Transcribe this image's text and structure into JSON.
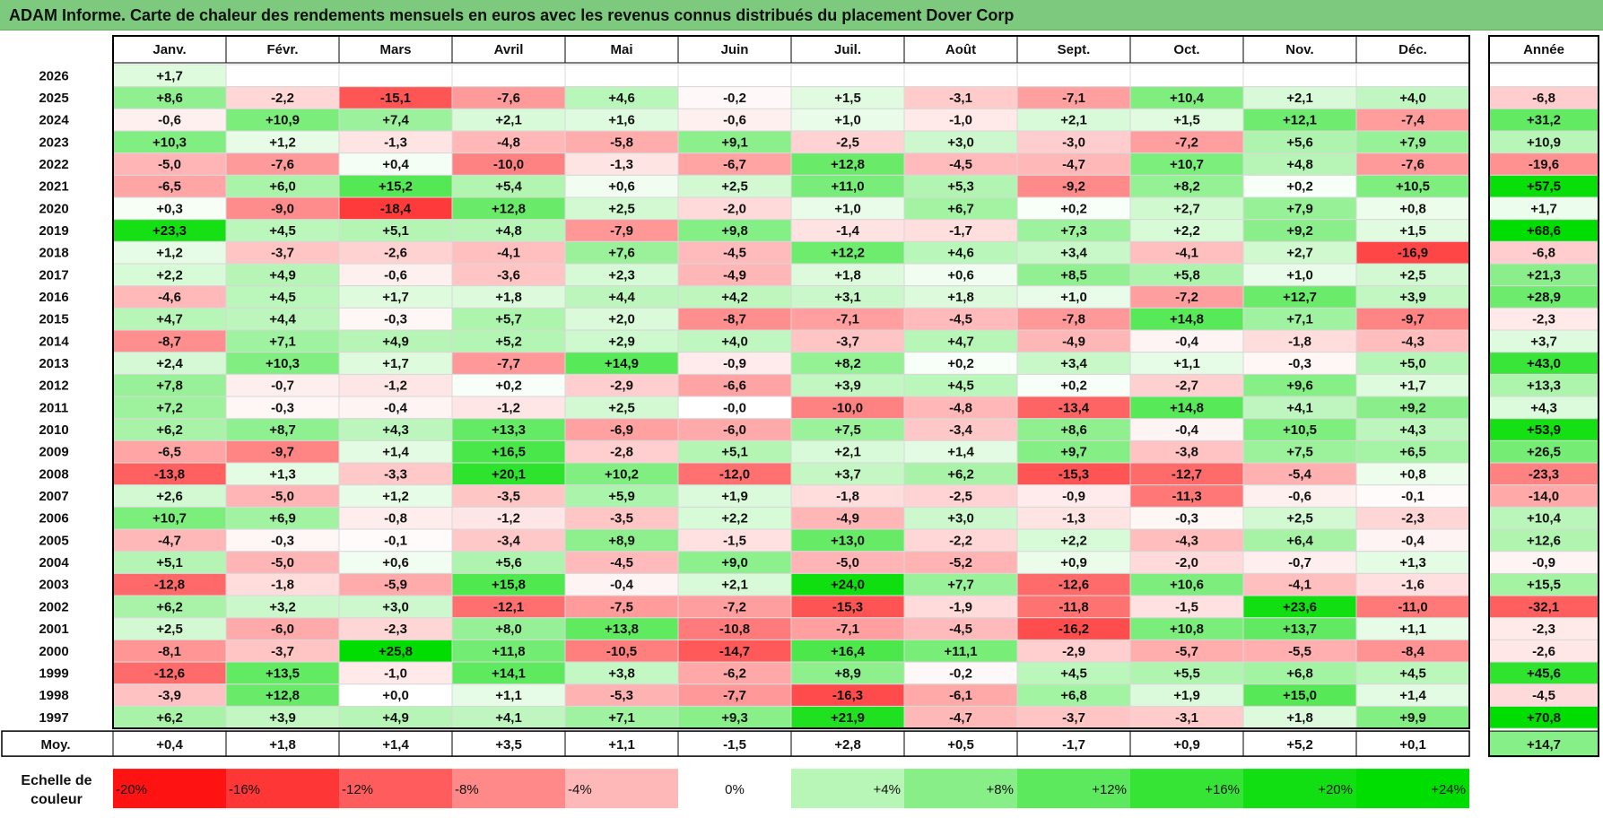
{
  "title": "ADAM Informe. Carte de chaleur des rendements mensuels en euros avec les revenus connus distribués du placement Dover Corp",
  "chart_data": {
    "type": "heatmap",
    "months": [
      "Janv.",
      "Févr.",
      "Mars",
      "Avril",
      "Mai",
      "Juin",
      "Juil.",
      "Août",
      "Sept.",
      "Oct.",
      "Nov.",
      "Déc."
    ],
    "year_header": "Année",
    "rows": [
      {
        "year": "2026",
        "values": [
          1.7,
          null,
          null,
          null,
          null,
          null,
          null,
          null,
          null,
          null,
          null,
          null
        ],
        "annual": null
      },
      {
        "year": "2025",
        "values": [
          8.6,
          -2.2,
          -15.1,
          -7.6,
          4.6,
          -0.2,
          1.5,
          -3.1,
          -7.1,
          10.4,
          2.1,
          4.0
        ],
        "annual": -6.8
      },
      {
        "year": "2024",
        "values": [
          -0.6,
          10.9,
          7.4,
          2.1,
          1.6,
          -0.6,
          1.0,
          -1.0,
          2.1,
          1.5,
          12.1,
          -7.4
        ],
        "annual": 31.2
      },
      {
        "year": "2023",
        "values": [
          10.3,
          1.2,
          -1.3,
          -4.8,
          -5.8,
          9.1,
          -2.5,
          3.0,
          -3.0,
          -7.2,
          5.6,
          7.9
        ],
        "annual": 10.9
      },
      {
        "year": "2022",
        "values": [
          -5.0,
          -7.6,
          0.4,
          -10.0,
          -1.3,
          -6.7,
          12.8,
          -4.5,
          -4.7,
          10.7,
          4.8,
          -7.6
        ],
        "annual": -19.6
      },
      {
        "year": "2021",
        "values": [
          -6.5,
          6.0,
          15.2,
          5.4,
          0.6,
          2.5,
          11.0,
          5.3,
          -9.2,
          8.2,
          0.2,
          10.5
        ],
        "annual": 57.5
      },
      {
        "year": "2020",
        "values": [
          0.3,
          -9.0,
          -18.4,
          12.8,
          2.5,
          -2.0,
          1.0,
          6.7,
          0.2,
          2.7,
          7.9,
          0.8
        ],
        "annual": 1.7
      },
      {
        "year": "2019",
        "values": [
          23.3,
          4.5,
          5.1,
          4.8,
          -7.9,
          9.8,
          -1.4,
          -1.7,
          7.3,
          2.2,
          9.2,
          1.5
        ],
        "annual": 68.6
      },
      {
        "year": "2018",
        "values": [
          1.2,
          -3.7,
          -2.6,
          -4.1,
          7.6,
          -4.5,
          12.2,
          4.6,
          3.4,
          -4.1,
          2.7,
          -16.9
        ],
        "annual": -6.8
      },
      {
        "year": "2017",
        "values": [
          2.2,
          4.9,
          -0.6,
          -3.6,
          2.3,
          -4.9,
          1.8,
          0.6,
          8.5,
          5.8,
          1.0,
          2.5
        ],
        "annual": 21.3
      },
      {
        "year": "2016",
        "values": [
          -4.6,
          4.5,
          1.7,
          1.8,
          4.4,
          4.2,
          3.1,
          1.8,
          1.0,
          -7.2,
          12.7,
          3.9
        ],
        "annual": 28.9
      },
      {
        "year": "2015",
        "values": [
          4.7,
          4.4,
          -0.3,
          5.7,
          2.0,
          -8.7,
          -7.1,
          -4.5,
          -7.8,
          14.8,
          7.1,
          -9.7
        ],
        "annual": -2.3
      },
      {
        "year": "2014",
        "values": [
          -8.7,
          7.1,
          4.9,
          5.2,
          2.9,
          4.0,
          -3.7,
          4.7,
          -4.9,
          -0.4,
          -1.8,
          -4.3
        ],
        "annual": 3.7
      },
      {
        "year": "2013",
        "values": [
          2.4,
          10.3,
          1.7,
          -7.7,
          14.9,
          -0.9,
          8.2,
          0.2,
          3.4,
          1.1,
          -0.3,
          5.0
        ],
        "annual": 43.0
      },
      {
        "year": "2012",
        "values": [
          7.8,
          -0.7,
          -1.2,
          0.2,
          -2.9,
          -6.6,
          3.9,
          4.5,
          0.2,
          -2.7,
          9.6,
          1.7
        ],
        "annual": 13.3
      },
      {
        "year": "2011",
        "values": [
          7.2,
          -0.3,
          -0.4,
          -1.2,
          2.5,
          -0.0,
          -10.0,
          -4.8,
          -13.4,
          14.8,
          4.1,
          9.2
        ],
        "annual": 4.3
      },
      {
        "year": "2010",
        "values": [
          6.2,
          8.7,
          4.3,
          13.3,
          -6.9,
          -6.0,
          7.5,
          -3.4,
          8.6,
          -0.4,
          10.5,
          4.3
        ],
        "annual": 53.9
      },
      {
        "year": "2009",
        "values": [
          -6.5,
          -9.7,
          1.4,
          16.5,
          -2.8,
          5.1,
          2.1,
          1.4,
          9.7,
          -3.8,
          7.5,
          6.5
        ],
        "annual": 26.5
      },
      {
        "year": "2008",
        "values": [
          -13.8,
          1.3,
          -3.3,
          20.1,
          10.2,
          -12.0,
          3.7,
          6.2,
          -15.3,
          -12.7,
          -5.4,
          0.8
        ],
        "annual": -23.3
      },
      {
        "year": "2007",
        "values": [
          2.6,
          -5.0,
          1.2,
          -3.5,
          5.9,
          1.9,
          -1.8,
          -2.5,
          -0.9,
          -11.3,
          -0.6,
          -0.1
        ],
        "annual": -14.0
      },
      {
        "year": "2006",
        "values": [
          10.7,
          6.9,
          -0.8,
          -1.2,
          -3.5,
          2.2,
          -4.9,
          3.0,
          -1.3,
          -0.3,
          2.5,
          -2.3
        ],
        "annual": 10.4
      },
      {
        "year": "2005",
        "values": [
          -4.7,
          -0.3,
          -0.1,
          -3.4,
          8.9,
          -1.5,
          13.0,
          -2.2,
          2.2,
          -4.3,
          6.4,
          -0.4
        ],
        "annual": 12.6
      },
      {
        "year": "2004",
        "values": [
          5.1,
          -5.0,
          0.6,
          5.6,
          -4.5,
          9.0,
          -5.0,
          -5.2,
          0.9,
          -2.0,
          -0.7,
          1.3
        ],
        "annual": -0.9
      },
      {
        "year": "2003",
        "values": [
          -12.8,
          -1.8,
          -5.9,
          15.8,
          -0.4,
          2.1,
          24.0,
          7.7,
          -12.6,
          10.6,
          -4.1,
          -1.6
        ],
        "annual": 15.5
      },
      {
        "year": "2002",
        "values": [
          6.2,
          3.2,
          3.0,
          -12.1,
          -7.5,
          -7.2,
          -15.3,
          -1.9,
          -11.8,
          -1.5,
          23.6,
          -11.0
        ],
        "annual": -32.1
      },
      {
        "year": "2001",
        "values": [
          2.5,
          -6.0,
          -2.3,
          8.0,
          13.8,
          -10.8,
          -7.1,
          -4.5,
          -16.2,
          10.8,
          13.7,
          1.1
        ],
        "annual": -2.3
      },
      {
        "year": "2000",
        "values": [
          -8.1,
          -3.7,
          25.8,
          11.8,
          -10.5,
          -14.7,
          16.4,
          11.1,
          -2.9,
          -5.7,
          -5.5,
          -8.4
        ],
        "annual": -2.6
      },
      {
        "year": "1999",
        "values": [
          -12.6,
          13.5,
          -1.0,
          14.1,
          3.8,
          -6.2,
          8.9,
          -0.2,
          4.5,
          5.5,
          6.8,
          4.5
        ],
        "annual": 45.6
      },
      {
        "year": "1998",
        "values": [
          -3.9,
          12.8,
          0.0,
          1.1,
          -5.3,
          -7.7,
          -16.3,
          -6.1,
          6.8,
          1.9,
          15.0,
          1.4
        ],
        "annual": -4.5
      },
      {
        "year": "1997",
        "values": [
          6.2,
          3.9,
          4.9,
          4.1,
          7.1,
          9.3,
          21.9,
          -4.7,
          -3.7,
          -3.1,
          1.8,
          9.9
        ],
        "annual": 70.8
      }
    ],
    "average": {
      "label": "Moy.",
      "values": [
        0.4,
        1.8,
        1.4,
        3.5,
        1.1,
        -1.5,
        2.8,
        0.5,
        -1.7,
        0.9,
        5.2,
        0.1
      ],
      "annual": 14.7
    },
    "scale": {
      "title_line1": "Echelle de",
      "title_line2": "couleur",
      "labels": [
        "-20%",
        "-16%",
        "-12%",
        "-8%",
        "-4%",
        "0%",
        "+4%",
        "+8%",
        "+12%",
        "+16%",
        "+20%",
        "+24%"
      ],
      "stops": [
        -20,
        -16,
        -12,
        -8,
        -4,
        0,
        4,
        8,
        12,
        16,
        20,
        24
      ]
    },
    "colors": {
      "neg_strong": "#ff0000",
      "pos_strong": "#00dd00",
      "neutral": "#ffffff",
      "title_bg": "#7dc97d"
    }
  }
}
